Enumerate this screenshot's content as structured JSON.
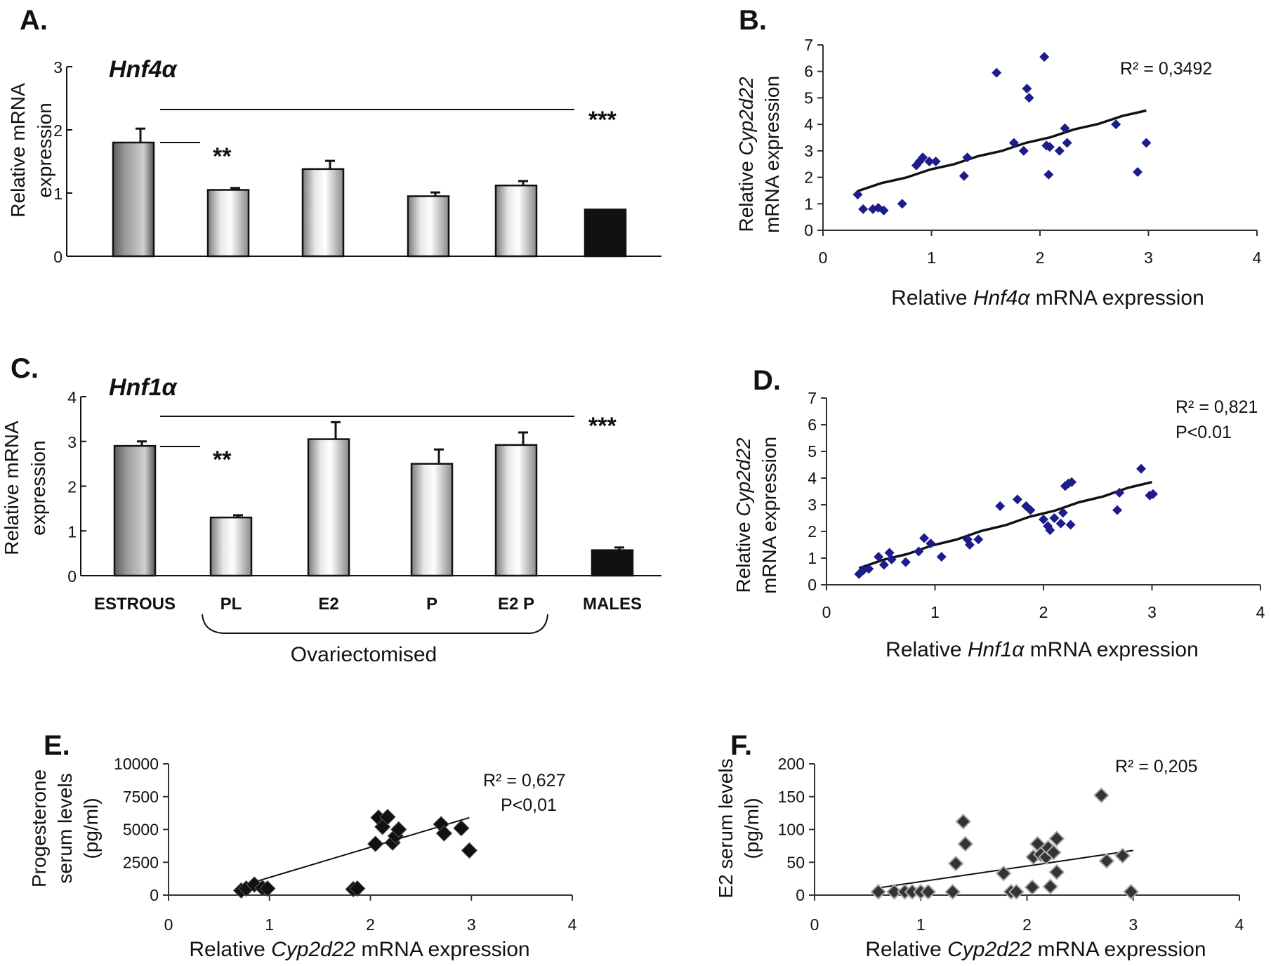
{
  "panels": [
    {
      "id": "A",
      "letter": "A.",
      "type": "bar",
      "gene": "Hnf4α",
      "ylabel_lines": [
        "Relative mRNA",
        "expression"
      ],
      "ylim": [
        0,
        3
      ],
      "yticks": [
        0,
        1,
        2,
        3
      ],
      "categories": [
        "ESTROUS",
        "PL",
        "E2",
        "P",
        "E2 P",
        "MALES"
      ],
      "values": [
        1.8,
        1.05,
        1.38,
        0.95,
        1.12,
        0.74
      ],
      "errors": [
        0.22,
        0.03,
        0.13,
        0.06,
        0.07,
        0.0
      ],
      "styles": [
        "dark",
        "light",
        "light",
        "light",
        "light",
        "black"
      ],
      "show_categories": false,
      "sig_short": "**",
      "sig_long": "***"
    },
    {
      "id": "C",
      "letter": "C.",
      "type": "bar",
      "gene": "Hnf1α",
      "ylabel_lines": [
        "Relative mRNA",
        "expression"
      ],
      "ylim": [
        0,
        4
      ],
      "yticks": [
        0,
        1,
        2,
        3,
        4
      ],
      "categories": [
        "ESTROUS",
        "PL",
        "E2",
        "P",
        "E2 P",
        "MALES"
      ],
      "values": [
        2.9,
        1.3,
        3.05,
        2.5,
        2.92,
        0.57
      ],
      "errors": [
        0.1,
        0.05,
        0.38,
        0.32,
        0.28,
        0.06
      ],
      "styles": [
        "dark",
        "light",
        "light",
        "light",
        "light",
        "black"
      ],
      "show_categories": true,
      "sig_short": "**",
      "sig_long": "***",
      "group_label": "Ovariectomised"
    },
    {
      "id": "B",
      "letter": "B.",
      "type": "scatter",
      "ylabel_prefix": "Relative ",
      "ylabel_gene": "Cyp2d22",
      "ylabel_line2": "mRNA expression",
      "xlabel_prefix": "Relative ",
      "xlabel_gene": "Hnf4α",
      "xlabel_suffix": " mRNA expression",
      "xlim": [
        0,
        4
      ],
      "ylim": [
        0,
        7
      ],
      "xticks": [
        0,
        1,
        2,
        3,
        4
      ],
      "yticks": [
        0,
        1,
        2,
        3,
        4,
        5,
        6,
        7
      ],
      "marker": "smalldiamond",
      "points": [
        [
          0.32,
          1.35
        ],
        [
          0.37,
          0.8
        ],
        [
          0.46,
          0.8
        ],
        [
          0.51,
          0.85
        ],
        [
          0.56,
          0.75
        ],
        [
          0.73,
          1.0
        ],
        [
          0.86,
          2.45
        ],
        [
          0.89,
          2.6
        ],
        [
          0.92,
          2.75
        ],
        [
          0.98,
          2.6
        ],
        [
          1.04,
          2.6
        ],
        [
          1.3,
          2.05
        ],
        [
          1.33,
          2.75
        ],
        [
          1.6,
          5.95
        ],
        [
          1.76,
          3.3
        ],
        [
          1.85,
          3.0
        ],
        [
          1.88,
          5.35
        ],
        [
          1.9,
          5.0
        ],
        [
          2.04,
          6.55
        ],
        [
          2.06,
          3.2
        ],
        [
          2.08,
          2.1
        ],
        [
          2.09,
          3.15
        ],
        [
          2.18,
          3.0
        ],
        [
          2.23,
          3.85
        ],
        [
          2.25,
          3.3
        ],
        [
          2.7,
          4.0
        ],
        [
          2.9,
          2.2
        ],
        [
          2.98,
          3.3
        ]
      ],
      "trend_x": [
        0.32,
        2.98
      ],
      "trend_y": [
        1.48,
        4.52
      ],
      "trend_wavy": true,
      "stat_lines": [
        "R² = 0,3492"
      ]
    },
    {
      "id": "D",
      "letter": "D.",
      "type": "scatter",
      "ylabel_prefix": "Relative ",
      "ylabel_gene": "Cyp2d22",
      "ylabel_line2": "mRNA expression",
      "xlabel_prefix": "Relative ",
      "xlabel_gene": "Hnf1α",
      "xlabel_suffix": " mRNA expression",
      "xlim": [
        0,
        4
      ],
      "ylim": [
        0,
        7
      ],
      "xticks": [
        0,
        1,
        2,
        3,
        4
      ],
      "yticks": [
        0,
        1,
        2,
        3,
        4,
        5,
        6,
        7
      ],
      "marker": "smalldiamond",
      "points": [
        [
          0.3,
          0.4
        ],
        [
          0.34,
          0.55
        ],
        [
          0.39,
          0.6
        ],
        [
          0.48,
          1.05
        ],
        [
          0.53,
          0.75
        ],
        [
          0.58,
          1.2
        ],
        [
          0.6,
          0.95
        ],
        [
          0.73,
          0.85
        ],
        [
          0.85,
          1.25
        ],
        [
          0.9,
          1.75
        ],
        [
          0.96,
          1.55
        ],
        [
          1.06,
          1.05
        ],
        [
          1.3,
          1.7
        ],
        [
          1.32,
          1.5
        ],
        [
          1.4,
          1.7
        ],
        [
          1.6,
          2.95
        ],
        [
          1.76,
          3.2
        ],
        [
          1.84,
          2.95
        ],
        [
          1.88,
          2.8
        ],
        [
          2.0,
          2.45
        ],
        [
          2.04,
          2.2
        ],
        [
          2.06,
          2.05
        ],
        [
          2.1,
          2.5
        ],
        [
          2.16,
          2.3
        ],
        [
          2.18,
          2.7
        ],
        [
          2.2,
          3.7
        ],
        [
          2.23,
          3.8
        ],
        [
          2.26,
          3.85
        ],
        [
          2.25,
          2.25
        ],
        [
          2.68,
          2.8
        ],
        [
          2.7,
          3.45
        ],
        [
          2.9,
          4.35
        ],
        [
          2.98,
          3.35
        ],
        [
          3.01,
          3.4
        ]
      ],
      "trend_x": [
        0.3,
        3.0
      ],
      "trend_y": [
        0.62,
        3.85
      ],
      "trend_wavy": true,
      "stat_lines": [
        "R² = 0,821",
        "P<0.01"
      ]
    },
    {
      "id": "E",
      "letter": "E.",
      "type": "scatter",
      "ylabel_lines": [
        "Progesterone",
        "serum levels",
        "(pg/ml)"
      ],
      "xlabel_prefix": "Relative ",
      "xlabel_gene": "Cyp2d22",
      "xlabel_suffix": " mRNA expression",
      "xlim": [
        0,
        4
      ],
      "ylim": [
        0,
        10000
      ],
      "xticks": [
        0,
        1,
        2,
        3,
        4
      ],
      "yticks": [
        0,
        2500,
        5000,
        7500,
        10000
      ],
      "marker": "bigdiamond",
      "points": [
        [
          0.72,
          350
        ],
        [
          0.77,
          500
        ],
        [
          0.85,
          800
        ],
        [
          0.93,
          550
        ],
        [
          0.98,
          500
        ],
        [
          1.83,
          450
        ],
        [
          1.87,
          500
        ],
        [
          2.05,
          3900
        ],
        [
          2.08,
          5900
        ],
        [
          2.12,
          5200
        ],
        [
          2.17,
          5950
        ],
        [
          2.22,
          4000
        ],
        [
          2.25,
          4500
        ],
        [
          2.28,
          5000
        ],
        [
          2.7,
          5400
        ],
        [
          2.73,
          4700
        ],
        [
          2.9,
          5100
        ],
        [
          2.98,
          3400
        ]
      ],
      "trend_x": [
        0.72,
        2.98
      ],
      "trend_y": [
        700,
        5900
      ],
      "trend_wavy": false,
      "stat_lines": [
        "R² = 0,627",
        "P<0,01"
      ]
    },
    {
      "id": "F",
      "letter": "F.",
      "type": "scatter",
      "ylabel_lines": [
        "E2 serum levels",
        "(pg/ml)"
      ],
      "xlabel_prefix": "Relative ",
      "xlabel_gene": "Cyp2d22",
      "xlabel_suffix": " mRNA expression",
      "xlim": [
        0,
        4
      ],
      "ylim": [
        0,
        200
      ],
      "xticks": [
        0,
        1,
        2,
        3,
        4
      ],
      "yticks": [
        0,
        50,
        100,
        150,
        200
      ],
      "marker": "graydiamond",
      "points": [
        [
          0.6,
          5
        ],
        [
          0.75,
          5
        ],
        [
          0.85,
          5
        ],
        [
          0.92,
          5
        ],
        [
          1.0,
          5
        ],
        [
          1.07,
          5
        ],
        [
          1.3,
          5
        ],
        [
          1.33,
          48
        ],
        [
          1.4,
          112
        ],
        [
          1.42,
          78
        ],
        [
          1.78,
          33
        ],
        [
          1.85,
          5
        ],
        [
          1.9,
          5
        ],
        [
          2.05,
          12
        ],
        [
          2.06,
          58
        ],
        [
          2.1,
          78
        ],
        [
          2.13,
          62
        ],
        [
          2.18,
          58
        ],
        [
          2.2,
          72
        ],
        [
          2.22,
          13
        ],
        [
          2.25,
          65
        ],
        [
          2.28,
          35
        ],
        [
          2.28,
          86
        ],
        [
          2.7,
          152
        ],
        [
          2.75,
          52
        ],
        [
          2.9,
          60
        ],
        [
          2.98,
          5
        ]
      ],
      "trend_x": [
        0.6,
        3.0
      ],
      "trend_y": [
        11,
        68
      ],
      "trend_wavy": false,
      "stat_lines": [
        "R² = 0,205"
      ]
    }
  ]
}
